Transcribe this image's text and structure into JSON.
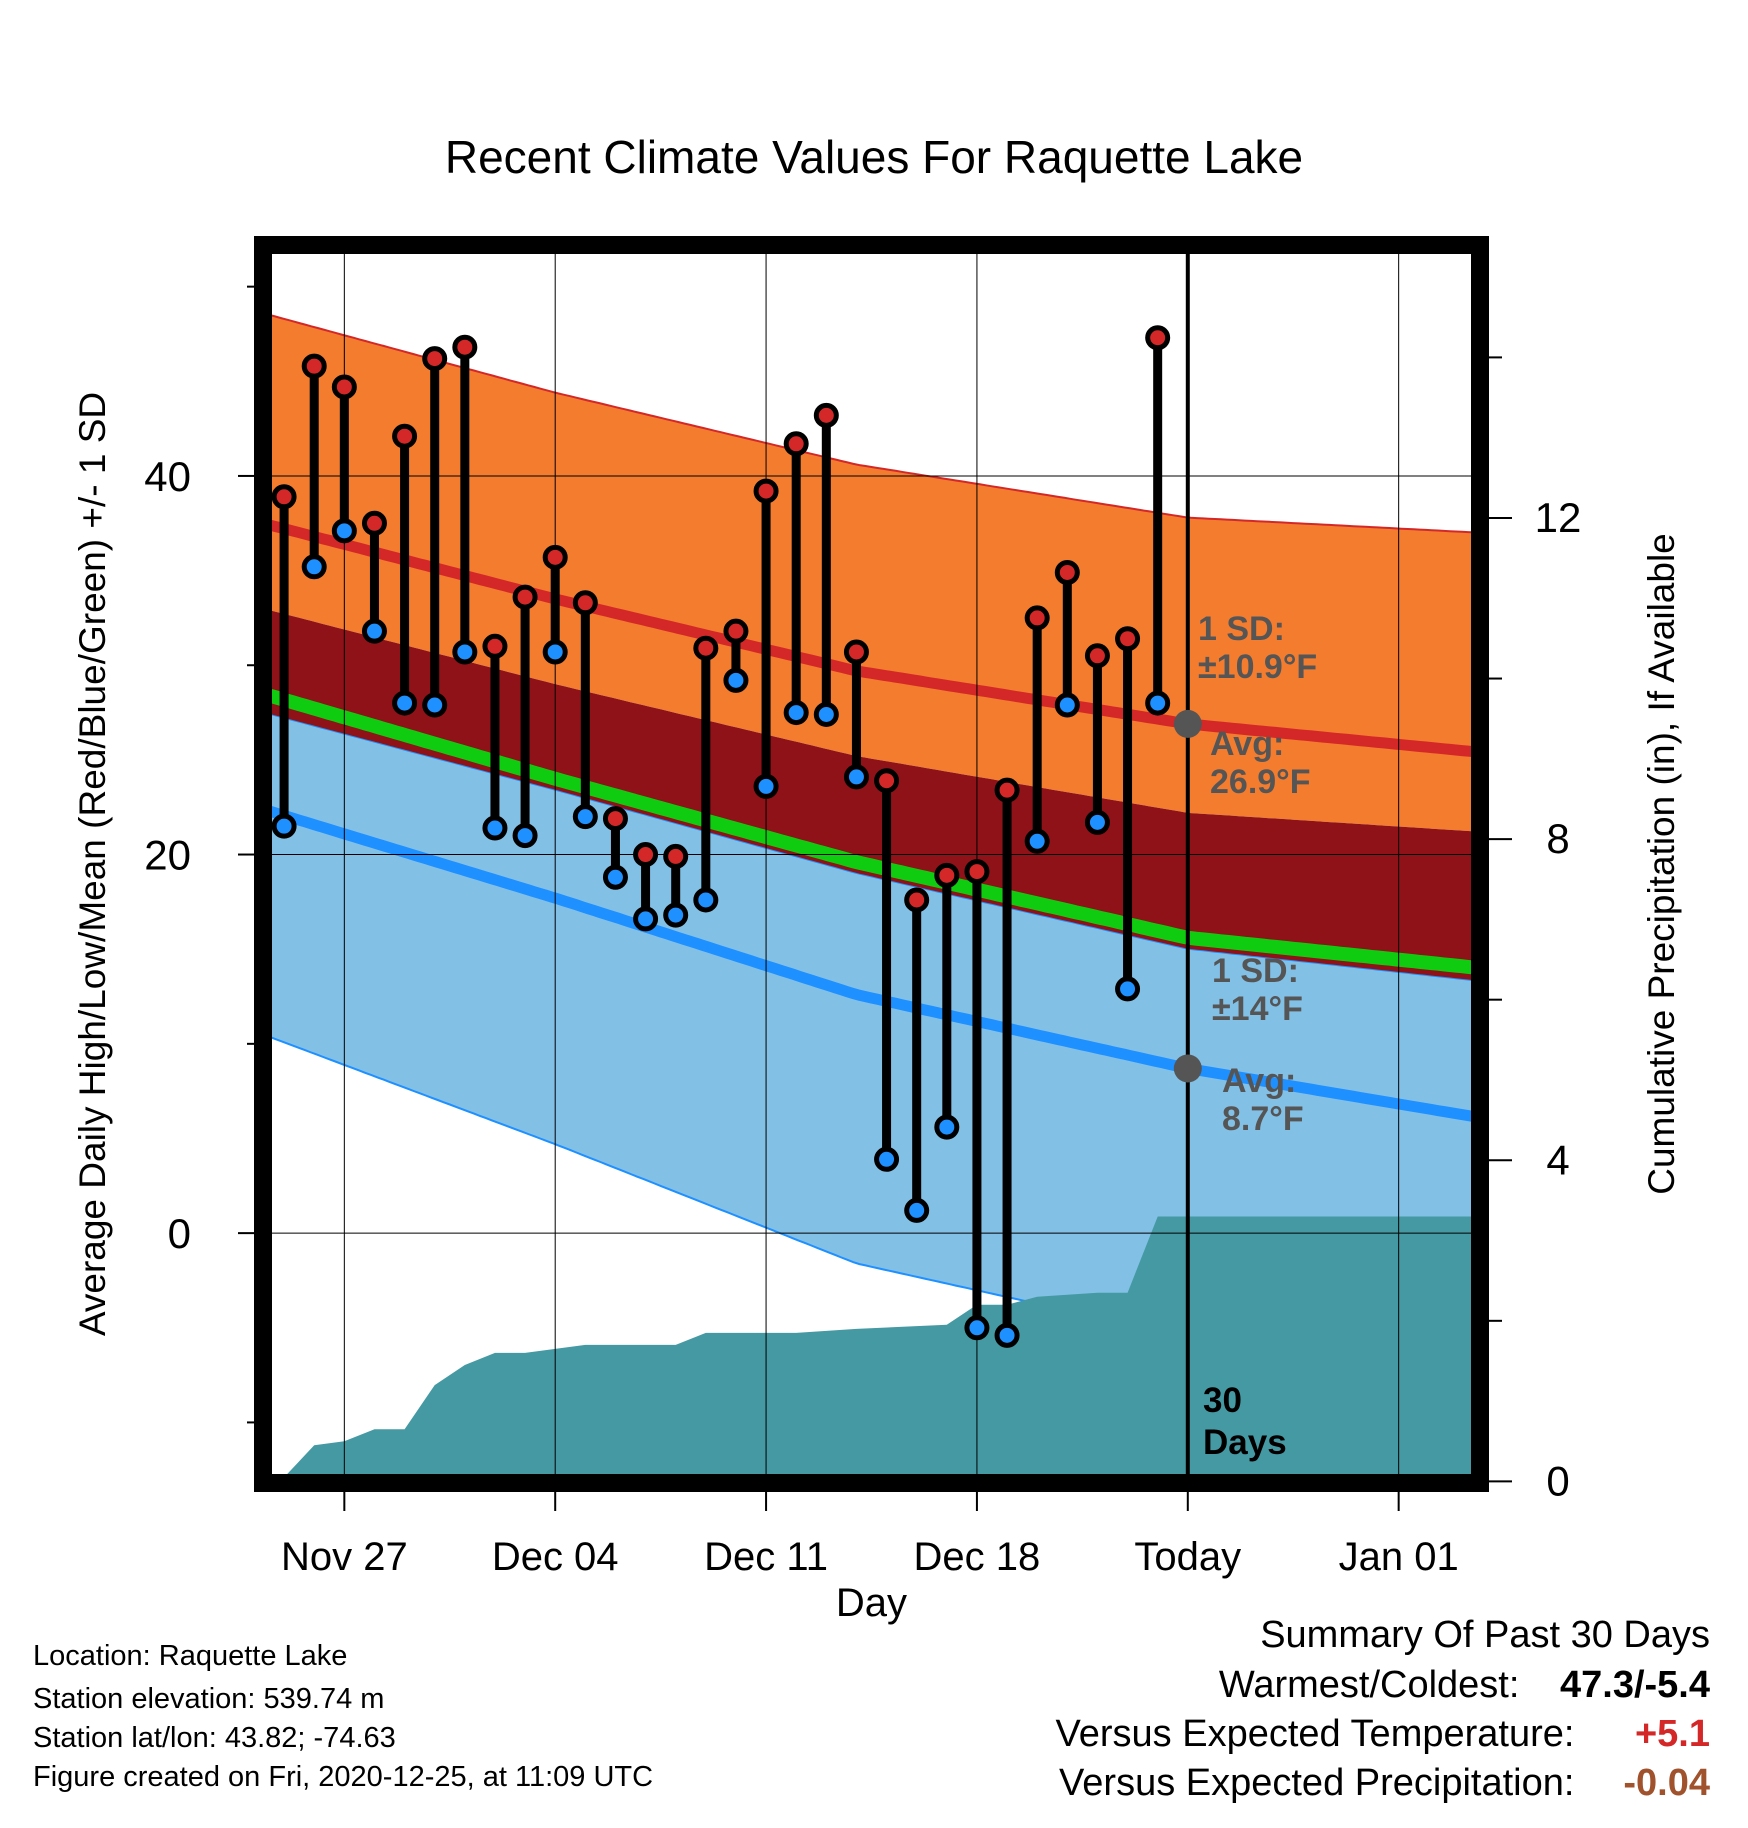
{
  "chart_data": {
    "type": "line",
    "title": "Recent Climate Values For Raquette Lake",
    "xlabel": "Day",
    "ylabel": "Average Daily High/Low/Mean (Red/Blue/Green) +/- 1 SD",
    "y2label": "Cumulative Precipitation (in), If Available",
    "x_tick_labels": [
      "Nov 27",
      "Dec 04",
      "Dec 11",
      "Dec 18",
      "Today",
      "Jan 01"
    ],
    "x_tick_days": [
      3,
      10,
      17,
      24,
      31,
      38
    ],
    "xlim": [
      0.3,
      40.7
    ],
    "ylim": [
      -13.2,
      52.2
    ],
    "y_ticks": [
      0,
      20,
      40
    ],
    "y2lim": [
      -0.02,
      15.4
    ],
    "y2_ticks": [
      0,
      4,
      8,
      12
    ],
    "today_day": 31,
    "today_label": "30 Days",
    "days": [
      1,
      2,
      3,
      4,
      5,
      6,
      7,
      8,
      9,
      10,
      11,
      12,
      13,
      14,
      15,
      16,
      17,
      18,
      19,
      20,
      21,
      22,
      23,
      24,
      25,
      26,
      27,
      28,
      29,
      30
    ],
    "observed_high": [
      38.9,
      45.8,
      44.7,
      37.5,
      42.1,
      46.2,
      46.8,
      31.0,
      33.6,
      35.7,
      33.3,
      21.9,
      20.0,
      19.9,
      30.9,
      31.8,
      39.2,
      41.7,
      43.2,
      30.7,
      23.9,
      17.6,
      18.9,
      19.1,
      23.4,
      32.5,
      34.9,
      30.5,
      31.4,
      47.3
    ],
    "observed_low": [
      21.5,
      35.2,
      37.1,
      31.8,
      28.0,
      27.9,
      30.7,
      21.4,
      21.0,
      30.7,
      22.0,
      18.8,
      16.6,
      16.8,
      17.6,
      29.2,
      23.6,
      27.5,
      27.4,
      24.1,
      3.9,
      1.2,
      5.6,
      -5.0,
      -5.4,
      20.7,
      27.9,
      21.7,
      12.9,
      28.0
    ],
    "expected_high_mean": [
      {
        "day": 0.3,
        "value": 37.5
      },
      {
        "day": 10,
        "value": 33.5
      },
      {
        "day": 20,
        "value": 29.7
      },
      {
        "day": 31,
        "value": 26.9
      },
      {
        "day": 40.7,
        "value": 25.4
      }
    ],
    "expected_high_upper": [
      {
        "day": 0.3,
        "value": 48.6
      },
      {
        "day": 10,
        "value": 44.4
      },
      {
        "day": 20,
        "value": 40.6
      },
      {
        "day": 31,
        "value": 37.8
      },
      {
        "day": 40.7,
        "value": 37.0
      }
    ],
    "expected_high_lower": [
      {
        "day": 0.3,
        "value": 33.0
      },
      {
        "day": 10,
        "value": 29.0
      },
      {
        "day": 20,
        "value": 25.2
      },
      {
        "day": 31,
        "value": 22.2
      },
      {
        "day": 40.7,
        "value": 21.2
      }
    ],
    "expected_mean": [
      {
        "day": 0.3,
        "value": 28.5
      },
      {
        "day": 10,
        "value": 24.0
      },
      {
        "day": 20,
        "value": 19.6
      },
      {
        "day": 31,
        "value": 15.6
      },
      {
        "day": 40.7,
        "value": 14.0
      }
    ],
    "expected_low_mean": [
      {
        "day": 0.3,
        "value": 22.4
      },
      {
        "day": 10,
        "value": 17.7
      },
      {
        "day": 20,
        "value": 12.6
      },
      {
        "day": 31,
        "value": 8.7
      },
      {
        "day": 40.7,
        "value": 6.1
      }
    ],
    "expected_low_upper": [
      {
        "day": 0.3,
        "value": 27.5
      },
      {
        "day": 10,
        "value": 23.4
      },
      {
        "day": 20,
        "value": 19.0
      },
      {
        "day": 31,
        "value": 15.0
      },
      {
        "day": 40.7,
        "value": 13.3
      }
    ],
    "expected_low_lower": [
      {
        "day": 0.3,
        "value": 10.5
      },
      {
        "day": 10,
        "value": 4.7
      },
      {
        "day": 20,
        "value": -1.6
      },
      {
        "day": 31,
        "value": -5.5
      },
      {
        "day": 40.7,
        "value": -6.8
      }
    ],
    "cumulative_precip": [
      {
        "day": 0.3,
        "value": 0.0
      },
      {
        "day": 1,
        "value": 0.05
      },
      {
        "day": 2,
        "value": 0.45
      },
      {
        "day": 3,
        "value": 0.5
      },
      {
        "day": 4,
        "value": 0.65
      },
      {
        "day": 5,
        "value": 0.65
      },
      {
        "day": 6,
        "value": 1.2
      },
      {
        "day": 7,
        "value": 1.45
      },
      {
        "day": 8,
        "value": 1.6
      },
      {
        "day": 9,
        "value": 1.6
      },
      {
        "day": 10,
        "value": 1.65
      },
      {
        "day": 11,
        "value": 1.7
      },
      {
        "day": 14,
        "value": 1.7
      },
      {
        "day": 15,
        "value": 1.85
      },
      {
        "day": 18,
        "value": 1.85
      },
      {
        "day": 20,
        "value": 1.9
      },
      {
        "day": 23,
        "value": 1.95
      },
      {
        "day": 24,
        "value": 2.2
      },
      {
        "day": 25,
        "value": 2.2
      },
      {
        "day": 26,
        "value": 2.3
      },
      {
        "day": 28,
        "value": 2.35
      },
      {
        "day": 29,
        "value": 2.35
      },
      {
        "day": 30,
        "value": 3.3
      },
      {
        "day": 40.7,
        "value": 3.3
      }
    ],
    "annotations": {
      "high_sd": [
        "1 SD:",
        "±10.9°F"
      ],
      "high_avg": [
        "Avg:",
        "26.9°F"
      ],
      "low_sd": [
        "1 SD:",
        "±14°F"
      ],
      "low_avg": [
        "Avg:",
        "8.7°F"
      ]
    },
    "colors": {
      "high_band": "#f47c2e",
      "high_mean_line": "#d42828",
      "overlap_band": "#8e1217",
      "mean_line": "#10cc10",
      "low_band": "#82c0e6",
      "low_mean_line": "#1e90ff",
      "precip_fill": "#4499a3",
      "high_marker": "#d42828",
      "low_marker": "#1e90ff",
      "annotation_text": "#555555"
    }
  },
  "footer": {
    "location": "Location: Raquette Lake",
    "elevation": "Station elevation: 539.74 m",
    "latlon": "Station lat/lon: 43.82; -74.63",
    "created": "Figure created on Fri, 2020-12-25, at 11:09 UTC"
  },
  "summary": {
    "heading": "Summary Of Past 30 Days",
    "warmest_label": "Warmest/Coldest:",
    "warmest_value": "47.3/-5.4",
    "temp_label": "Versus Expected Temperature:",
    "temp_value": "+5.1",
    "temp_color": "#d42828",
    "precip_label": "Versus Expected Precipitation:",
    "precip_value": "-0.04",
    "precip_color": "#a0522d"
  }
}
